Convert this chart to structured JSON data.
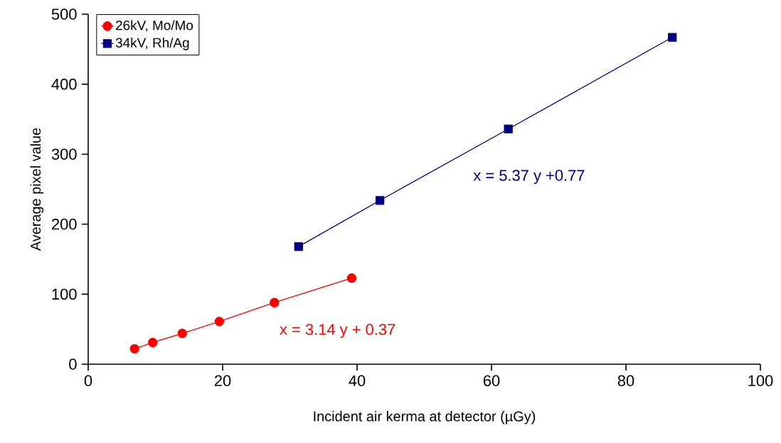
{
  "chart_data": {
    "type": "line",
    "xlabel": "Incident air kerma at detector (µGy)",
    "ylabel": "Average pixel value",
    "xlim": [
      0,
      100
    ],
    "xticks": [
      0,
      20,
      40,
      60,
      80,
      100
    ],
    "ylim": [
      0,
      500
    ],
    "yticks": [
      0,
      100,
      200,
      300,
      400,
      500
    ],
    "legend": "top left",
    "grid": false,
    "line_style": "solid",
    "series": [
      {
        "name": "26kV, Mo/Mo",
        "color": "#ff0000",
        "marker": "circle",
        "x": [
          6.9,
          9.6,
          14.0,
          19.5,
          27.7,
          39.2
        ],
        "values": [
          22,
          31,
          44,
          61,
          88,
          123
        ]
      },
      {
        "name": "34kV, Rh/Ag",
        "color": "#000080",
        "marker": "square",
        "x": [
          31.3,
          43.4,
          62.5,
          86.9
        ],
        "values": [
          168,
          234,
          336,
          467
        ]
      }
    ],
    "annotations": [
      "x = 3.14 y + 0.37",
      "x = 5.37 y +0.77"
    ]
  }
}
